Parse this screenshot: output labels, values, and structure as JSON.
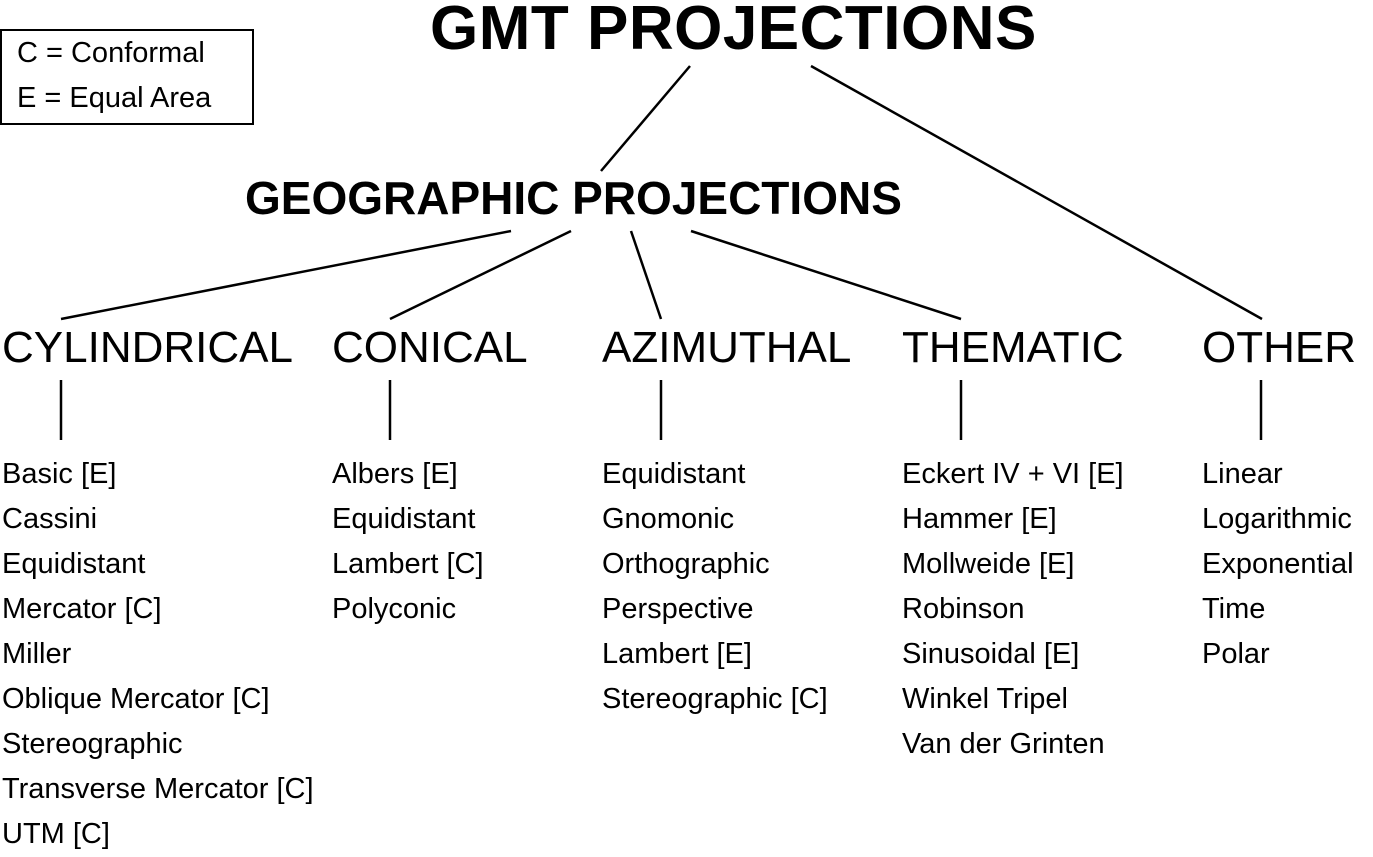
{
  "diagram": {
    "title": "GMT PROJECTIONS",
    "subtitle": "GEOGRAPHIC PROJECTIONS",
    "legend": {
      "lines": [
        "C = Conformal",
        "E = Equal Area"
      ]
    },
    "categories": [
      {
        "label": "CYLINDRICAL",
        "items": [
          "Basic [E]",
          "Cassini",
          "Equidistant",
          "Mercator [C]",
          "Miller",
          "Oblique Mercator [C]",
          "Stereographic",
          "Transverse Mercator [C]",
          "UTM [C]"
        ]
      },
      {
        "label": "CONICAL",
        "items": [
          "Albers [E]",
          "Equidistant",
          "Lambert [C]",
          "Polyconic"
        ]
      },
      {
        "label": "AZIMUTHAL",
        "items": [
          "Equidistant",
          "Gnomonic",
          "Orthographic",
          "Perspective",
          "Lambert [E]",
          "Stereographic [C]"
        ]
      },
      {
        "label": "THEMATIC",
        "items": [
          "Eckert IV + VI [E]",
          "Hammer [E]",
          "Mollweide [E]",
          "Robinson",
          "Sinusoidal [E]",
          "Winkel Tripel",
          "Van der Grinten"
        ]
      },
      {
        "label": "OTHER",
        "items": [
          "Linear",
          "Logarithmic",
          "Exponential",
          "Time",
          "Polar"
        ]
      }
    ]
  }
}
